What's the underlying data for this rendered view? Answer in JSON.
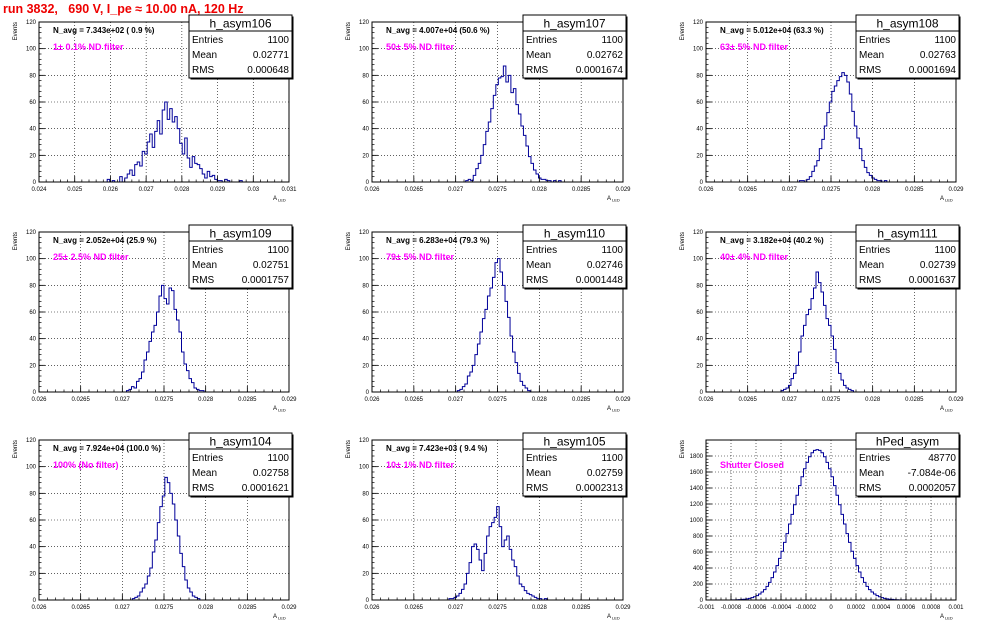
{
  "canvas_title": "run 3832,   690 V, I_pe ≈ 10.00 nA, 120 Hz",
  "colors": {
    "hist": "#000099",
    "annotation": "#ff00ff",
    "title": "#ee0000",
    "grid": "#000000"
  },
  "y_axis_label": "Events",
  "x_axis_label": "A",
  "x_axis_label_sub": "LED",
  "stats_labels": {
    "entries": "Entries",
    "mean": "Mean",
    "rms": "RMS"
  },
  "chart_data": [
    {
      "type": "histogram",
      "name": "h_asym106",
      "n_avg_label": "N_avg = 7.343e+02 ( 0.9 %)",
      "filter_label": "1± 0.1% ND filter",
      "stats": {
        "entries": "1100",
        "mean": "0.02771",
        "rms": "0.000648"
      },
      "xlim": [
        0.024,
        0.031
      ],
      "ylim": [
        0,
        120
      ],
      "xticks": [
        0.024,
        0.025,
        0.026,
        0.027,
        0.028,
        0.029,
        0.03,
        0.031
      ],
      "xtick_labels": [
        "0.024",
        "0.025",
        "0.026",
        "0.027",
        "0.028",
        "0.029",
        "0.03",
        "0.031"
      ],
      "yticks": [
        0,
        20,
        40,
        60,
        80,
        100,
        120
      ],
      "bins": {
        "start": 0.02591,
        "width": 7e-05,
        "values": [
          2,
          0,
          1,
          0,
          0,
          4,
          0,
          3,
          6,
          9,
          5,
          13,
          15,
          12,
          23,
          21,
          30,
          36,
          26,
          38,
          46,
          36,
          54,
          60,
          47,
          55,
          45,
          49,
          40,
          29,
          21,
          33,
          18,
          11,
          19,
          14,
          13,
          10,
          6,
          3,
          8,
          4,
          5,
          2,
          1,
          1,
          0,
          2,
          1,
          0,
          0,
          0,
          0,
          1
        ]
      }
    },
    {
      "type": "histogram",
      "name": "h_asym107",
      "n_avg_label": "N_avg = 4.007e+04 (50.6 %)",
      "filter_label": "50± 5% ND filter",
      "stats": {
        "entries": "1100",
        "mean": "0.02762",
        "rms": "0.0001674"
      },
      "xlim": [
        0.026,
        0.029
      ],
      "ylim": [
        0,
        120
      ],
      "xticks": [
        0.026,
        0.0265,
        0.027,
        0.0275,
        0.028,
        0.0285,
        0.029
      ],
      "xtick_labels": [
        "0.026",
        "0.0265",
        "0.027",
        "0.0275",
        "0.028",
        "0.0285",
        "0.029"
      ],
      "yticks": [
        0,
        20,
        40,
        60,
        80,
        100,
        120
      ],
      "bins": {
        "start": 0.02712,
        "width": 3e-05,
        "values": [
          1,
          2,
          1,
          5,
          10,
          14,
          20,
          28,
          38,
          45,
          55,
          65,
          73,
          78,
          79,
          87,
          75,
          80,
          67,
          70,
          58,
          51,
          42,
          35,
          27,
          19,
          14,
          9,
          6,
          3,
          2,
          2,
          1,
          1,
          0,
          1,
          0,
          1
        ]
      }
    },
    {
      "type": "histogram",
      "name": "h_asym108",
      "n_avg_label": "N_avg = 5.012e+04 (63.3 %)",
      "filter_label": "63± 5% ND filter",
      "stats": {
        "entries": "1100",
        "mean": "0.02763",
        "rms": "0.0001694"
      },
      "xlim": [
        0.026,
        0.029
      ],
      "ylim": [
        0,
        120
      ],
      "xticks": [
        0.026,
        0.0265,
        0.027,
        0.0275,
        0.028,
        0.0285,
        0.029
      ],
      "xtick_labels": [
        "0.026",
        "0.0265",
        "0.027",
        "0.0275",
        "0.028",
        "0.0285",
        "0.029"
      ],
      "yticks": [
        0,
        20,
        40,
        60,
        80,
        100,
        120
      ],
      "bins": {
        "start": 0.02712,
        "width": 3e-05,
        "values": [
          1,
          1,
          0,
          2,
          4,
          8,
          12,
          16,
          25,
          32,
          42,
          52,
          60,
          68,
          72,
          76,
          79,
          82,
          80,
          75,
          66,
          53,
          42,
          33,
          25,
          16,
          11,
          7,
          5,
          3,
          2,
          1,
          1,
          0,
          1
        ]
      }
    },
    {
      "type": "histogram",
      "name": "h_asym109",
      "n_avg_label": "N_avg = 2.052e+04 (25.9 %)",
      "filter_label": "25± 2.5% ND filter",
      "stats": {
        "entries": "1100",
        "mean": "0.02751",
        "rms": "0.0001757"
      },
      "xlim": [
        0.026,
        0.029
      ],
      "ylim": [
        0,
        120
      ],
      "xticks": [
        0.026,
        0.0265,
        0.027,
        0.0275,
        0.028,
        0.0285,
        0.029
      ],
      "xtick_labels": [
        "0.026",
        "0.0265",
        "0.027",
        "0.0275",
        "0.028",
        "0.0285",
        "0.029"
      ],
      "yticks": [
        0,
        20,
        40,
        60,
        80,
        100,
        120
      ],
      "bins": {
        "start": 0.02705,
        "width": 3e-05,
        "values": [
          1,
          2,
          4,
          3,
          8,
          10,
          15,
          24,
          30,
          38,
          45,
          50,
          60,
          72,
          80,
          70,
          66,
          78,
          76,
          62,
          54,
          45,
          30,
          21,
          16,
          10,
          7,
          3,
          2,
          1,
          1
        ]
      }
    },
    {
      "type": "histogram",
      "name": "h_asym110",
      "n_avg_label": "N_avg = 6.283e+04 (79.3 %)",
      "filter_label": "79± 5% ND filter",
      "stats": {
        "entries": "1100",
        "mean": "0.02746",
        "rms": "0.0001448"
      },
      "xlim": [
        0.026,
        0.029
      ],
      "ylim": [
        0,
        120
      ],
      "xticks": [
        0.026,
        0.0265,
        0.027,
        0.0275,
        0.028,
        0.0285,
        0.029
      ],
      "xtick_labels": [
        "0.026",
        "0.0265",
        "0.027",
        "0.0275",
        "0.028",
        "0.0285",
        "0.029"
      ],
      "yticks": [
        0,
        20,
        40,
        60,
        80,
        100,
        120
      ],
      "bins": {
        "start": 0.02702,
        "width": 3e-05,
        "values": [
          1,
          2,
          4,
          6,
          12,
          15,
          20,
          28,
          36,
          45,
          55,
          62,
          72,
          78,
          86,
          97,
          100,
          90,
          80,
          68,
          56,
          42,
          30,
          22,
          14,
          8,
          5,
          3,
          1
        ]
      }
    },
    {
      "type": "histogram",
      "name": "h_asym111",
      "n_avg_label": "N_avg = 3.182e+04 (40.2 %)",
      "filter_label": "40± 4% ND filter",
      "stats": {
        "entries": "1100",
        "mean": "0.02739",
        "rms": "0.0001637"
      },
      "xlim": [
        0.026,
        0.029
      ],
      "ylim": [
        0,
        120
      ],
      "xticks": [
        0.026,
        0.0265,
        0.027,
        0.0275,
        0.028,
        0.0285,
        0.029
      ],
      "xtick_labels": [
        "0.026",
        "0.0265",
        "0.027",
        "0.0275",
        "0.028",
        "0.0285",
        "0.029"
      ],
      "yticks": [
        0,
        20,
        40,
        60,
        80,
        100,
        120
      ],
      "bins": {
        "start": 0.0269,
        "width": 3e-05,
        "values": [
          1,
          2,
          3,
          5,
          10,
          14,
          20,
          30,
          42,
          50,
          58,
          62,
          70,
          78,
          90,
          82,
          75,
          65,
          55,
          50,
          42,
          32,
          22,
          14,
          9,
          5,
          3,
          2,
          1
        ]
      }
    },
    {
      "type": "histogram",
      "name": "h_asym104",
      "n_avg_label": "N_avg = 7.924e+04 (100.0 %)",
      "filter_label": "100% (No filter)",
      "stats": {
        "entries": "1100",
        "mean": "0.02758",
        "rms": "0.0001621"
      },
      "xlim": [
        0.026,
        0.029
      ],
      "ylim": [
        0,
        120
      ],
      "xticks": [
        0.026,
        0.0265,
        0.027,
        0.0275,
        0.028,
        0.0285,
        0.029
      ],
      "xtick_labels": [
        "0.026",
        "0.0265",
        "0.027",
        "0.0275",
        "0.028",
        "0.0285",
        "0.029"
      ],
      "yticks": [
        0,
        20,
        40,
        60,
        80,
        100,
        120
      ],
      "bins": {
        "start": 0.02712,
        "width": 3e-05,
        "values": [
          1,
          2,
          3,
          6,
          9,
          12,
          18,
          24,
          36,
          45,
          58,
          70,
          78,
          92,
          88,
          80,
          72,
          60,
          48,
          35,
          25,
          15,
          9,
          6,
          3,
          2,
          1
        ]
      }
    },
    {
      "type": "histogram",
      "name": "h_asym105",
      "n_avg_label": "N_avg = 7.423e+03 ( 9.4 %)",
      "filter_label": "10± 1% ND filter",
      "stats": {
        "entries": "1100",
        "mean": "0.02759",
        "rms": "0.0002313"
      },
      "xlim": [
        0.026,
        0.029
      ],
      "ylim": [
        0,
        120
      ],
      "xticks": [
        0.026,
        0.0265,
        0.027,
        0.0275,
        0.028,
        0.0285,
        0.029
      ],
      "xtick_labels": [
        "0.026",
        "0.0265",
        "0.027",
        "0.0275",
        "0.028",
        "0.0285",
        "0.029"
      ],
      "yticks": [
        0,
        20,
        40,
        60,
        80,
        100,
        120
      ],
      "bins": {
        "start": 0.02692,
        "width": 3e-05,
        "values": [
          1,
          1,
          2,
          3,
          5,
          8,
          12,
          20,
          28,
          40,
          42,
          38,
          30,
          22,
          35,
          48,
          55,
          58,
          62,
          70,
          55,
          40,
          45,
          48,
          38,
          30,
          25,
          18,
          12,
          10,
          7,
          5,
          4,
          3,
          2,
          1,
          1,
          0,
          1
        ]
      }
    },
    {
      "type": "histogram",
      "name": "hPed_asym",
      "n_avg_label": "",
      "filter_label": "Shutter Closed",
      "stats": {
        "entries": "48770",
        "mean": "-7.084e-06",
        "rms": "0.0002057"
      },
      "xlim": [
        -0.001,
        0.001
      ],
      "ylim": [
        0,
        2000
      ],
      "xticks": [
        -0.001,
        -0.0008,
        -0.0006,
        -0.0004,
        -0.0002,
        0,
        0.0002,
        0.0004,
        0.0006,
        0.0008,
        0.001
      ],
      "xtick_labels": [
        "-0.001",
        "-0.0008",
        "-0.0006",
        "-0.0004",
        "-0.0002",
        "0",
        "0.0002",
        "0.0004",
        "0.0006",
        "0.0008",
        "0.001"
      ],
      "yticks": [
        0,
        200,
        400,
        600,
        800,
        1000,
        1200,
        1400,
        1600,
        1800
      ],
      "bins": {
        "start": -0.0008,
        "width": 2e-05,
        "values": [
          1,
          2,
          3,
          5,
          8,
          10,
          14,
          20,
          30,
          40,
          55,
          75,
          100,
          130,
          170,
          220,
          280,
          350,
          430,
          520,
          610,
          720,
          830,
          950,
          1070,
          1190,
          1310,
          1430,
          1540,
          1640,
          1720,
          1790,
          1840,
          1870,
          1880,
          1870,
          1840,
          1790,
          1720,
          1640,
          1540,
          1430,
          1310,
          1190,
          1070,
          950,
          830,
          720,
          610,
          520,
          430,
          350,
          280,
          220,
          170,
          130,
          100,
          75,
          55,
          40,
          30,
          20,
          14,
          10,
          8,
          5,
          3,
          2,
          1,
          1
        ]
      }
    }
  ]
}
